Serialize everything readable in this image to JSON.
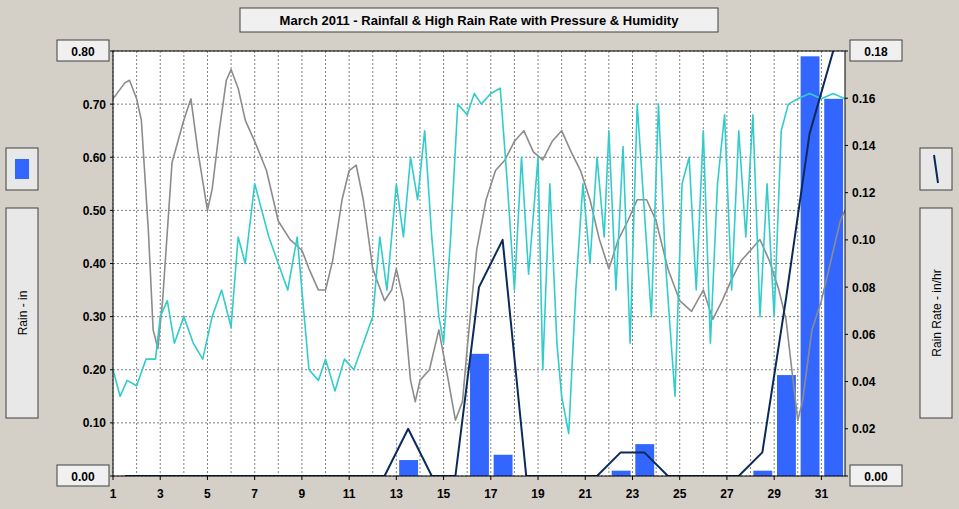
{
  "chart_data": {
    "type": "bar",
    "title": "March 2011 - Rainfall & High Rain Rate with Pressure & Humidity",
    "y_label": "Rain - in",
    "y2_label": "Rain Rate - in/hr",
    "xlim": [
      1,
      32
    ],
    "xticks": [
      1,
      3,
      5,
      7,
      9,
      11,
      13,
      15,
      17,
      19,
      21,
      23,
      25,
      27,
      29,
      31
    ],
    "ylim": [
      0,
      0.8
    ],
    "yticks": [
      {
        "value": 0,
        "label": "0.00"
      },
      {
        "value": 0.1,
        "label": "0.10"
      },
      {
        "value": 0.2,
        "label": "0.20"
      },
      {
        "value": 0.3,
        "label": "0.30"
      },
      {
        "value": 0.4,
        "label": "0.40"
      },
      {
        "value": 0.5,
        "label": "0.50"
      },
      {
        "value": 0.6,
        "label": "0.60"
      },
      {
        "value": 0.7,
        "label": "0.70"
      },
      {
        "value": 0.8,
        "label": "0.80"
      }
    ],
    "y2lim": [
      0,
      0.18
    ],
    "y2ticks": [
      {
        "value": 0,
        "label": "0.00"
      },
      {
        "value": 0.02,
        "label": "0.02"
      },
      {
        "value": 0.04,
        "label": "0.04"
      },
      {
        "value": 0.06,
        "label": "0.06"
      },
      {
        "value": 0.08,
        "label": "0.08"
      },
      {
        "value": 0.1,
        "label": "0.10"
      },
      {
        "value": 0.12,
        "label": "0.12"
      },
      {
        "value": 0.14,
        "label": "0.14"
      },
      {
        "value": 0.16,
        "label": "0.16"
      },
      {
        "value": 0.18,
        "label": "0.18"
      }
    ],
    "grid": true,
    "series": [
      {
        "name": "Rainfall",
        "type": "bar",
        "color": "#3366ff",
        "x": [
          1,
          2,
          3,
          4,
          5,
          6,
          7,
          8,
          9,
          10,
          11,
          12,
          13,
          14,
          15,
          16,
          17,
          18,
          19,
          20,
          21,
          22,
          23,
          24,
          25,
          26,
          27,
          28,
          29,
          30,
          31
        ],
        "values": [
          0,
          0,
          0,
          0,
          0,
          0,
          0,
          0,
          0,
          0,
          0,
          0,
          0.03,
          0,
          0,
          0.23,
          0.04,
          0,
          0,
          0,
          0,
          0.01,
          0.06,
          0,
          0,
          0,
          0,
          0.01,
          0.19,
          0.79,
          0.71
        ]
      },
      {
        "name": "High Rain Rate",
        "type": "line",
        "axis": "y2",
        "color": "#0a2a5c",
        "x": [
          1.5,
          2.5,
          3.5,
          4.5,
          5.5,
          6.5,
          7.5,
          8.5,
          9.5,
          10.5,
          11.5,
          12.5,
          13.5,
          14.5,
          15.5,
          16.5,
          17.5,
          18.5,
          19.5,
          20.5,
          21.5,
          22.5,
          23.5,
          24.5,
          25.5,
          26.5,
          27.5,
          28.5,
          29.5,
          30.5,
          31.5
        ],
        "values": [
          0,
          0,
          0,
          0,
          0,
          0,
          0,
          0,
          0,
          0,
          0,
          0,
          0.02,
          0,
          0,
          0.08,
          0.1,
          0,
          0,
          0,
          0,
          0.01,
          0.01,
          0,
          0,
          0,
          0,
          0.01,
          0.075,
          0.145,
          0.18
        ]
      },
      {
        "name": "Pressure",
        "type": "line",
        "color": "#8c8c8c",
        "x": [
          1,
          1.5,
          1.7,
          2,
          2.2,
          2.5,
          2.7,
          2.9,
          3.1,
          3.5,
          4,
          4.3,
          4.6,
          5,
          5.2,
          5.5,
          5.8,
          6,
          6.3,
          6.6,
          7,
          7.5,
          8,
          8.5,
          9,
          9.3,
          9.7,
          10,
          10.3,
          10.7,
          11,
          11.3,
          11.6,
          12,
          12.5,
          12.8,
          13,
          13.3,
          13.6,
          13.8,
          14,
          14.4,
          14.8,
          15.2,
          15.5,
          15.8,
          16,
          16.4,
          16.8,
          17.2,
          17.6,
          18,
          18.4,
          18.8,
          19.2,
          19.6,
          20,
          20.4,
          20.8,
          21.2,
          21.6,
          22,
          22.4,
          22.8,
          23.2,
          23.6,
          24,
          24.5,
          25,
          25.5,
          26,
          26.4,
          26.8,
          27.2,
          27.6,
          28,
          28.4,
          28.8,
          29.2,
          29.5,
          29.8,
          30,
          30.2,
          30.6,
          31,
          31.4,
          31.8,
          32
        ],
        "values": [
          0.71,
          0.74,
          0.745,
          0.71,
          0.67,
          0.46,
          0.275,
          0.24,
          0.33,
          0.59,
          0.67,
          0.71,
          0.61,
          0.5,
          0.54,
          0.65,
          0.745,
          0.765,
          0.73,
          0.67,
          0.63,
          0.575,
          0.48,
          0.445,
          0.425,
          0.39,
          0.35,
          0.35,
          0.405,
          0.52,
          0.575,
          0.585,
          0.52,
          0.39,
          0.33,
          0.35,
          0.39,
          0.33,
          0.18,
          0.14,
          0.18,
          0.2,
          0.275,
          0.18,
          0.105,
          0.14,
          0.24,
          0.425,
          0.52,
          0.575,
          0.595,
          0.63,
          0.65,
          0.61,
          0.595,
          0.63,
          0.65,
          0.61,
          0.575,
          0.52,
          0.445,
          0.39,
          0.445,
          0.48,
          0.52,
          0.52,
          0.48,
          0.39,
          0.33,
          0.31,
          0.35,
          0.295,
          0.33,
          0.37,
          0.405,
          0.425,
          0.445,
          0.405,
          0.35,
          0.295,
          0.18,
          0.105,
          0.14,
          0.275,
          0.33,
          0.405,
          0.48,
          0.5
        ]
      },
      {
        "name": "Humidity",
        "type": "line",
        "color": "#33cccc",
        "x": [
          1,
          1.3,
          1.6,
          2,
          2.4,
          2.8,
          3,
          3.3,
          3.6,
          4,
          4.4,
          4.8,
          5.2,
          5.6,
          6,
          6.3,
          6.6,
          7,
          7.3,
          7.6,
          8,
          8.4,
          8.8,
          9,
          9.3,
          9.7,
          10,
          10.4,
          10.8,
          11.2,
          11.6,
          12,
          12.3,
          12.6,
          13,
          13.3,
          13.6,
          13.9,
          14.2,
          14.5,
          14.8,
          15,
          15.3,
          15.6,
          16,
          16.3,
          16.6,
          17,
          17.4,
          17.7,
          18,
          18.3,
          18.6,
          19,
          19.2,
          19.5,
          19.8,
          20,
          20.3,
          20.6,
          20.9,
          21.2,
          21.5,
          21.8,
          22,
          22.3,
          22.6,
          22.9,
          23.2,
          23.5,
          23.8,
          24.1,
          24.4,
          24.8,
          25.1,
          25.4,
          25.7,
          26,
          26.3,
          26.6,
          26.9,
          27.2,
          27.5,
          27.8,
          28.1,
          28.4,
          28.7,
          29,
          29.3,
          29.6,
          30,
          30.5,
          31,
          31.5,
          32
        ],
        "values": [
          0.2,
          0.15,
          0.18,
          0.17,
          0.22,
          0.22,
          0.3,
          0.33,
          0.25,
          0.3,
          0.25,
          0.22,
          0.3,
          0.35,
          0.28,
          0.45,
          0.4,
          0.55,
          0.5,
          0.45,
          0.4,
          0.35,
          0.45,
          0.35,
          0.2,
          0.18,
          0.22,
          0.16,
          0.22,
          0.2,
          0.25,
          0.3,
          0.45,
          0.35,
          0.55,
          0.45,
          0.6,
          0.52,
          0.65,
          0.45,
          0.3,
          0.25,
          0.45,
          0.7,
          0.68,
          0.72,
          0.7,
          0.72,
          0.73,
          0.55,
          0.35,
          0.6,
          0.38,
          0.6,
          0.2,
          0.55,
          0.25,
          0.15,
          0.08,
          0.35,
          0.55,
          0.4,
          0.6,
          0.45,
          0.65,
          0.35,
          0.62,
          0.25,
          0.7,
          0.5,
          0.3,
          0.7,
          0.4,
          0.15,
          0.55,
          0.6,
          0.35,
          0.65,
          0.25,
          0.55,
          0.68,
          0.35,
          0.65,
          0.45,
          0.68,
          0.3,
          0.55,
          0.3,
          0.65,
          0.7,
          0.71,
          0.72,
          0.71,
          0.72,
          0.71
        ]
      }
    ]
  }
}
